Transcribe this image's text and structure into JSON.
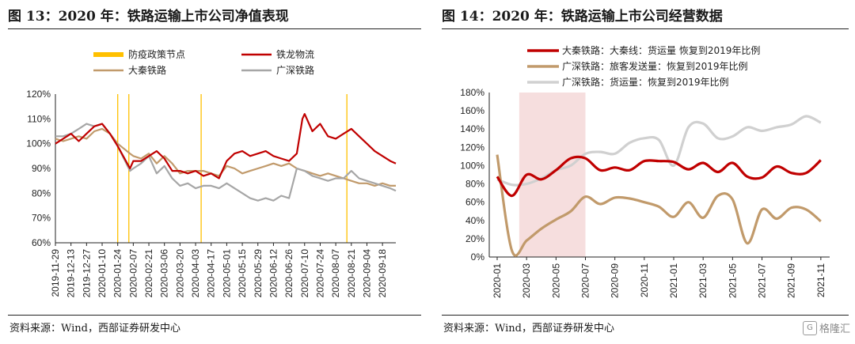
{
  "left": {
    "title": "图 13：2020 年：铁路运输上市公司净值表现",
    "source": "资料来源：Wind，西部证券研发中心"
  },
  "right": {
    "title": "图 14：2020 年：铁路运输上市公司经营数据",
    "source": "资料来源：Wind，西部证券研发中心"
  },
  "watermark": {
    "icon": "glyph-logo-icon",
    "text": "格隆汇"
  },
  "colors": {
    "red": "#c00000",
    "tan": "#c19a6b",
    "gray": "#a6a6a6",
    "lightgray": "#d0d0d0",
    "yellow": "#ffc000",
    "pink": "#f6dede"
  },
  "chart_data": [
    {
      "type": "line",
      "title": "",
      "xlabel": "",
      "ylabel": "",
      "y_tick_format": "percent",
      "ylim": [
        60,
        120
      ],
      "y_ticks": [
        60,
        70,
        80,
        90,
        100,
        110,
        120
      ],
      "x_ticks": [
        "2019-11-29",
        "2019-12-13",
        "2019-12-27",
        "2020-01-10",
        "2020-01-24",
        "2020-02-07",
        "2020-02-21",
        "2020-03-06",
        "2020-03-20",
        "2020-04-03",
        "2020-04-17",
        "2020-05-01",
        "2020-05-15",
        "2020-05-29",
        "2020-06-12",
        "2020-06-26",
        "2020-07-10",
        "2020-07-24",
        "2020-08-07",
        "2020-08-21",
        "2020-09-04",
        "2020-09-18"
      ],
      "x_range": [
        "2019-11-29",
        "2020-09-30"
      ],
      "grid": false,
      "legend": {
        "placement": "top",
        "columns": 2
      },
      "event_markers": {
        "name": "防疫政策节点",
        "color": "#ffc000",
        "dates": [
          "2020-01-24",
          "2020-02-03",
          "2020-04-08",
          "2020-08-17"
        ]
      },
      "series": [
        {
          "name": "铁龙物流",
          "color": "#c00000",
          "x": [
            "2019-11-29",
            "2019-12-06",
            "2019-12-13",
            "2019-12-20",
            "2019-12-27",
            "2020-01-03",
            "2020-01-10",
            "2020-01-17",
            "2020-01-24",
            "2020-02-04",
            "2020-02-07",
            "2020-02-14",
            "2020-02-21",
            "2020-02-28",
            "2020-03-06",
            "2020-03-13",
            "2020-03-20",
            "2020-03-27",
            "2020-04-03",
            "2020-04-10",
            "2020-04-17",
            "2020-04-24",
            "2020-05-01",
            "2020-05-08",
            "2020-05-15",
            "2020-05-22",
            "2020-05-29",
            "2020-06-05",
            "2020-06-12",
            "2020-06-19",
            "2020-06-26",
            "2020-07-03",
            "2020-07-08",
            "2020-07-10",
            "2020-07-17",
            "2020-07-24",
            "2020-07-31",
            "2020-08-07",
            "2020-08-14",
            "2020-08-21",
            "2020-08-28",
            "2020-09-04",
            "2020-09-11",
            "2020-09-18",
            "2020-09-25",
            "2020-09-30"
          ],
          "values": [
            100,
            102,
            104,
            101,
            104,
            107,
            108,
            104,
            99,
            90,
            93,
            93,
            95,
            97,
            94,
            89,
            89,
            88,
            89,
            87,
            88,
            86,
            93,
            96,
            97,
            95,
            96,
            97,
            95,
            94,
            93,
            96,
            110,
            112,
            105,
            108,
            103,
            102,
            104,
            106,
            103,
            100,
            97,
            95,
            93,
            92
          ]
        },
        {
          "name": "大秦铁路",
          "color": "#c19a6b",
          "x": [
            "2019-11-29",
            "2019-12-06",
            "2019-12-13",
            "2019-12-20",
            "2019-12-27",
            "2020-01-03",
            "2020-01-10",
            "2020-01-17",
            "2020-01-24",
            "2020-02-04",
            "2020-02-07",
            "2020-02-14",
            "2020-02-21",
            "2020-02-28",
            "2020-03-06",
            "2020-03-13",
            "2020-03-20",
            "2020-03-27",
            "2020-04-03",
            "2020-04-10",
            "2020-04-17",
            "2020-04-24",
            "2020-05-01",
            "2020-05-08",
            "2020-05-15",
            "2020-05-22",
            "2020-05-29",
            "2020-06-05",
            "2020-06-12",
            "2020-06-19",
            "2020-06-26",
            "2020-07-03",
            "2020-07-10",
            "2020-07-17",
            "2020-07-24",
            "2020-07-31",
            "2020-08-07",
            "2020-08-14",
            "2020-08-21",
            "2020-08-28",
            "2020-09-04",
            "2020-09-11",
            "2020-09-18",
            "2020-09-25",
            "2020-09-30"
          ],
          "values": [
            102,
            101,
            102,
            103,
            102,
            105,
            106,
            104,
            100,
            96,
            95,
            94,
            96,
            92,
            95,
            92,
            88,
            89,
            89,
            89,
            88,
            87,
            91,
            90,
            88,
            89,
            90,
            91,
            92,
            91,
            92,
            90,
            89,
            88,
            87,
            88,
            87,
            86,
            85,
            84,
            84,
            83,
            84,
            83,
            83
          ]
        },
        {
          "name": "广深铁路",
          "color": "#a6a6a6",
          "x": [
            "2019-11-29",
            "2019-12-06",
            "2019-12-13",
            "2019-12-20",
            "2019-12-27",
            "2020-01-03",
            "2020-01-10",
            "2020-01-17",
            "2020-01-24",
            "2020-02-04",
            "2020-02-07",
            "2020-02-14",
            "2020-02-21",
            "2020-02-28",
            "2020-03-06",
            "2020-03-13",
            "2020-03-20",
            "2020-03-27",
            "2020-04-03",
            "2020-04-10",
            "2020-04-17",
            "2020-04-24",
            "2020-05-01",
            "2020-05-08",
            "2020-05-15",
            "2020-05-22",
            "2020-05-29",
            "2020-06-05",
            "2020-06-12",
            "2020-06-19",
            "2020-06-26",
            "2020-07-03",
            "2020-07-10",
            "2020-07-17",
            "2020-07-24",
            "2020-07-31",
            "2020-08-07",
            "2020-08-14",
            "2020-08-21",
            "2020-08-28",
            "2020-09-04",
            "2020-09-11",
            "2020-09-18",
            "2020-09-25",
            "2020-09-30"
          ],
          "values": [
            103,
            103,
            104,
            106,
            108,
            107,
            108,
            104,
            99,
            89,
            90,
            92,
            95,
            88,
            91,
            86,
            83,
            84,
            82,
            83,
            83,
            82,
            84,
            82,
            80,
            78,
            77,
            78,
            77,
            79,
            78,
            90,
            89,
            87,
            86,
            85,
            86,
            86,
            89,
            86,
            85,
            84,
            83,
            82,
            81
          ]
        }
      ]
    },
    {
      "type": "line",
      "title": "",
      "xlabel": "",
      "ylabel": "",
      "y_tick_format": "percent",
      "ylim": [
        0,
        180
      ],
      "y_ticks": [
        0,
        20,
        40,
        60,
        80,
        100,
        120,
        140,
        160,
        180
      ],
      "x_ticks": [
        "2020-01",
        "2020-03",
        "2020-05",
        "2020-07",
        "2020-09",
        "2020-11",
        "2021-01",
        "2021-03",
        "2021-05",
        "2021-07",
        "2021-09",
        "2021-11"
      ],
      "categories": [
        "2020-01",
        "2020-02",
        "2020-03",
        "2020-04",
        "2020-05",
        "2020-06",
        "2020-07",
        "2020-08",
        "2020-09",
        "2020-10",
        "2020-11",
        "2020-12",
        "2021-01",
        "2021-02",
        "2021-03",
        "2021-04",
        "2021-05",
        "2021-06",
        "2021-07",
        "2021-08",
        "2021-09",
        "2021-10",
        "2021-11"
      ],
      "grid": false,
      "legend": {
        "placement": "top-left"
      },
      "shaded_period": {
        "from": "2020-02",
        "to": "2020-07",
        "color": "#f6dede"
      },
      "series": [
        {
          "name": "大秦铁路：大秦线：货运量 恢复到2019年比例",
          "color": "#c00000",
          "values": [
            88,
            67,
            90,
            85,
            95,
            108,
            108,
            95,
            98,
            95,
            105,
            105,
            104,
            96,
            103,
            93,
            103,
            88,
            87,
            99,
            92,
            92,
            106
          ]
        },
        {
          "name": "广深铁路：旅客发送量：恢复到2019年比例",
          "color": "#c19a6b",
          "values": [
            112,
            7,
            18,
            31,
            41,
            50,
            66,
            58,
            65,
            64,
            60,
            55,
            44,
            60,
            43,
            67,
            63,
            15,
            52,
            42,
            54,
            52,
            39
          ]
        },
        {
          "name": "广深铁路：货运量：恢复到2019年比例",
          "color": "#d0d0d0",
          "values": [
            85,
            79,
            80,
            86,
            95,
            100,
            113,
            115,
            113,
            125,
            130,
            128,
            100,
            142,
            146,
            130,
            132,
            142,
            138,
            142,
            145,
            154,
            147
          ]
        }
      ]
    }
  ]
}
